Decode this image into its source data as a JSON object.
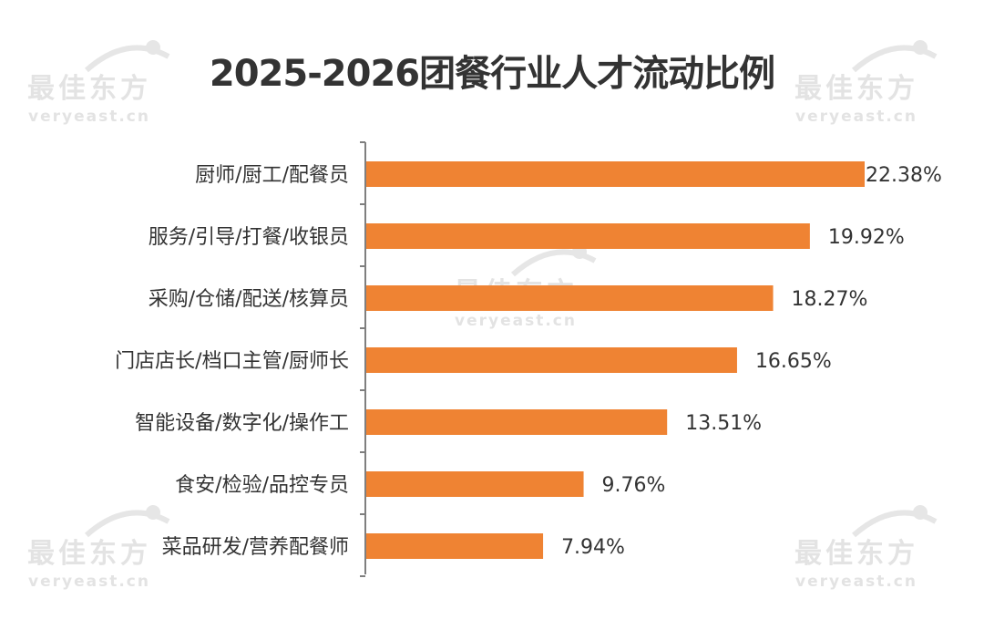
{
  "title": "2025-2026团餐行业人才流动比例",
  "watermark": {
    "brand_cn": "最佳东方",
    "brand_en": "veryeast.cn"
  },
  "colors": {
    "bar": "#EF8333",
    "axis": "#7f7f7f",
    "text": "#333333",
    "watermark": "#e3e3e3"
  },
  "chart_data": {
    "type": "bar",
    "orientation": "horizontal",
    "title": "2025-2026团餐行业人才流动比例",
    "categories": [
      "厨师/厨工/配餐员",
      "服务/引导/打餐/收银员",
      "采购/仓储/配送/核算员",
      "门店店长/档口主管/厨师长",
      "智能设备/数字化/操作工",
      "食安/检验/品控专员",
      "菜品研发/营养配餐师"
    ],
    "values": [
      22.38,
      19.92,
      18.27,
      16.65,
      13.51,
      9.76,
      7.94
    ],
    "value_labels": [
      "22.38%",
      "19.92%",
      "18.27%",
      "16.65%",
      "13.51%",
      "9.76%",
      "7.94%"
    ],
    "unit": "%",
    "xlim": [
      0,
      22.38
    ],
    "grid": false,
    "legend": "none"
  }
}
